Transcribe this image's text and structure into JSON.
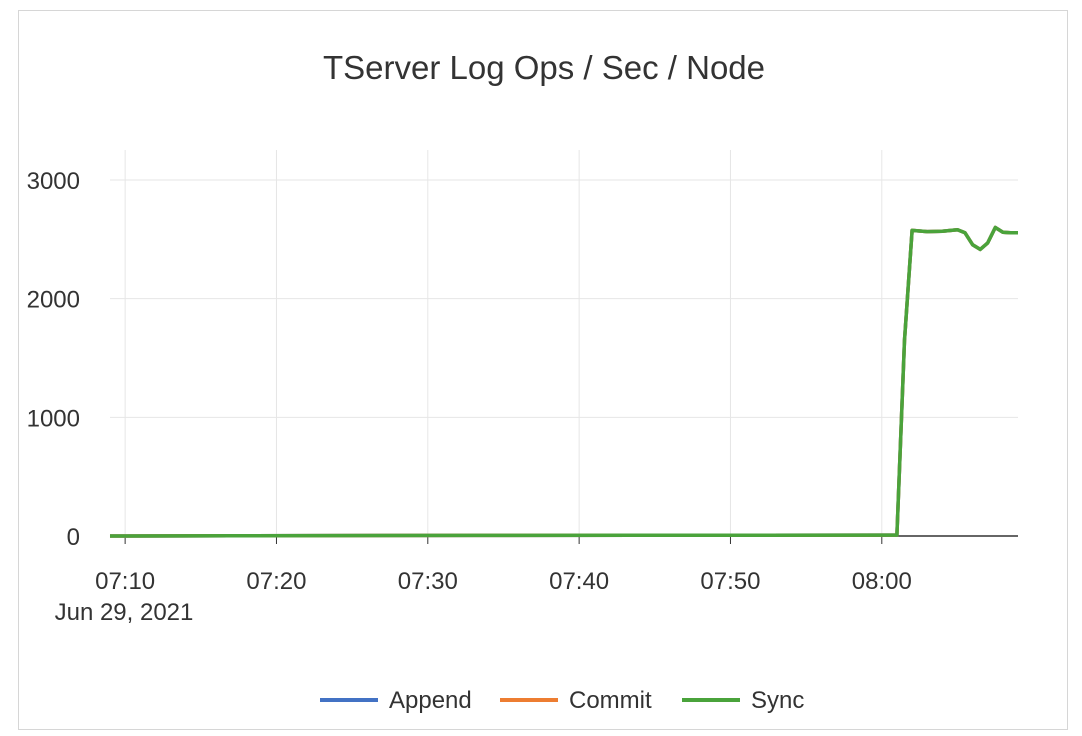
{
  "chart_data": {
    "type": "line",
    "title": "TServer Log Ops / Sec / Node",
    "xlabel": "",
    "ylabel": "",
    "x_date_label": "Jun 29, 2021",
    "x_ticks": [
      "07:10",
      "07:20",
      "07:30",
      "07:40",
      "07:50",
      "08:00"
    ],
    "x_tick_minutes": [
      0,
      10,
      20,
      30,
      40,
      50
    ],
    "y_ticks": [
      0,
      1000,
      2000,
      3000
    ],
    "ylim": [
      0,
      3000
    ],
    "xlim_minutes": [
      -1,
      59
    ],
    "grid": true,
    "legend_position": "bottom",
    "x": [
      "07:09",
      "07:17",
      "07:33",
      "08:01",
      "08:01:30",
      "08:02",
      "08:03",
      "08:04",
      "08:05",
      "08:05:30",
      "08:06",
      "08:06:30",
      "08:07",
      "08:07:30",
      "08:08",
      "08:08:30",
      "08:09"
    ],
    "series": [
      {
        "name": "Append",
        "color": "#4372c4",
        "values": [
          0,
          2,
          5,
          8,
          1650,
          2575,
          2565,
          2568,
          2580,
          2555,
          2455,
          2415,
          2470,
          2600,
          2560,
          2555,
          2555
        ]
      },
      {
        "name": "Commit",
        "color": "#ed7d31",
        "values": [
          0,
          2,
          5,
          8,
          1650,
          2575,
          2565,
          2568,
          2580,
          2555,
          2455,
          2415,
          2470,
          2600,
          2560,
          2555,
          2555
        ]
      },
      {
        "name": "Sync",
        "color": "#4aa33b",
        "values": [
          0,
          2,
          5,
          8,
          1650,
          2575,
          2565,
          2568,
          2580,
          2555,
          2455,
          2415,
          2470,
          2600,
          2560,
          2555,
          2555
        ]
      }
    ]
  }
}
